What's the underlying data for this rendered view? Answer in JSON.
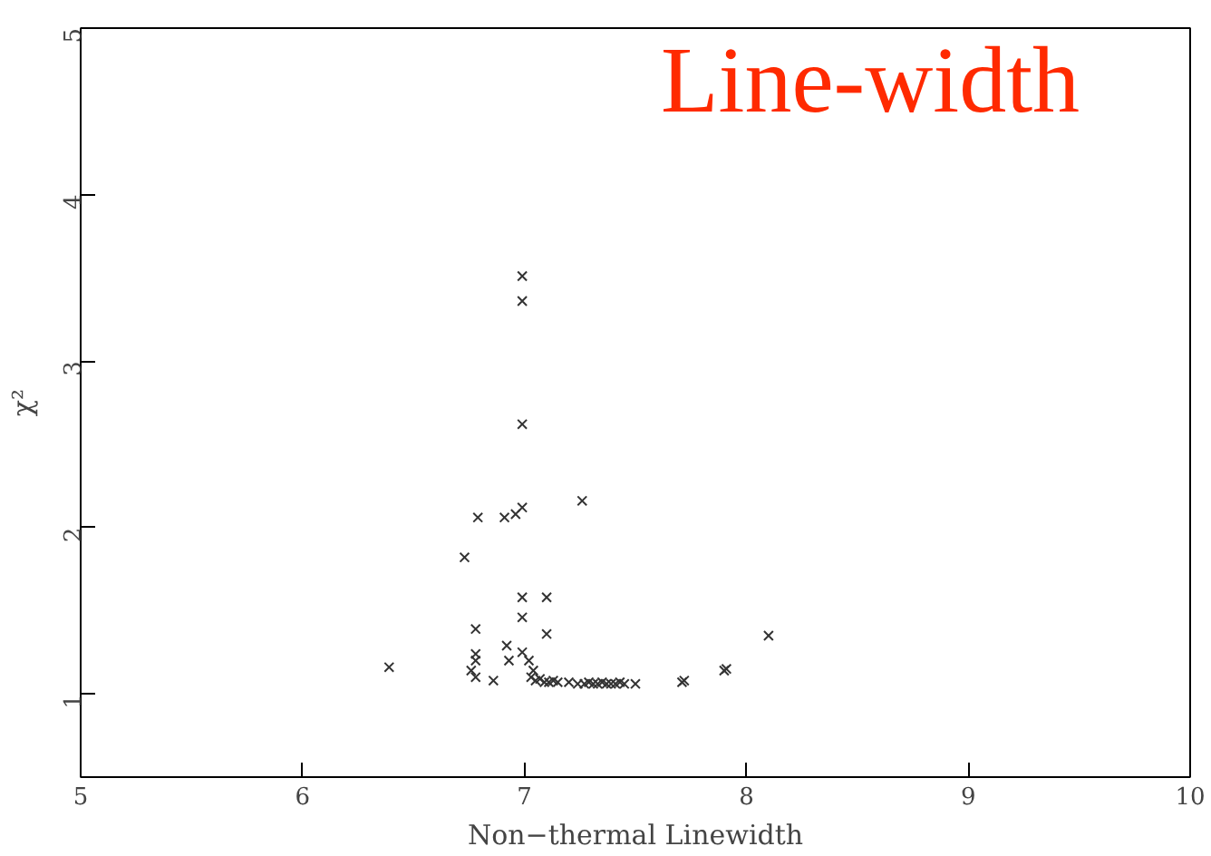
{
  "chart_data": {
    "type": "scatter",
    "xlabel": "Non−thermal Linewidth",
    "ylabel": "χ²",
    "annotations": [
      "Line-width"
    ],
    "marker": "cross",
    "xlim": [
      5,
      10
    ],
    "ylim": [
      0.5,
      5
    ],
    "xticks": [
      5,
      6,
      7,
      8,
      9,
      10
    ],
    "yticks": [
      1,
      2,
      3,
      4,
      5
    ],
    "series": [
      {
        "color": "#333333",
        "x": [
          6.99,
          6.99,
          6.99,
          7.26,
          6.99,
          6.96,
          6.91,
          6.79,
          6.73,
          6.99,
          7.1,
          6.99,
          6.78,
          7.1,
          6.92,
          6.78,
          6.78,
          6.93,
          6.99,
          7.02,
          7.04,
          6.39,
          6.76,
          6.78,
          6.86,
          7.03,
          7.05,
          7.07,
          7.09,
          7.11,
          7.13,
          7.15,
          7.2,
          7.24,
          7.27,
          7.29,
          7.31,
          7.33,
          7.35,
          7.37,
          7.39,
          7.41,
          7.43,
          7.45,
          7.5,
          7.71,
          7.72,
          7.9,
          7.91,
          8.1
        ],
        "values": [
          3.51,
          3.36,
          2.62,
          2.16,
          2.12,
          2.08,
          2.06,
          2.06,
          1.82,
          1.58,
          1.58,
          1.46,
          1.39,
          1.36,
          1.29,
          1.24,
          1.2,
          1.2,
          1.25,
          1.2,
          1.14,
          1.16,
          1.14,
          1.1,
          1.08,
          1.1,
          1.08,
          1.09,
          1.07,
          1.07,
          1.08,
          1.07,
          1.07,
          1.06,
          1.06,
          1.07,
          1.06,
          1.06,
          1.07,
          1.06,
          1.06,
          1.06,
          1.07,
          1.06,
          1.06,
          1.07,
          1.08,
          1.14,
          1.15,
          1.35
        ]
      }
    ]
  }
}
